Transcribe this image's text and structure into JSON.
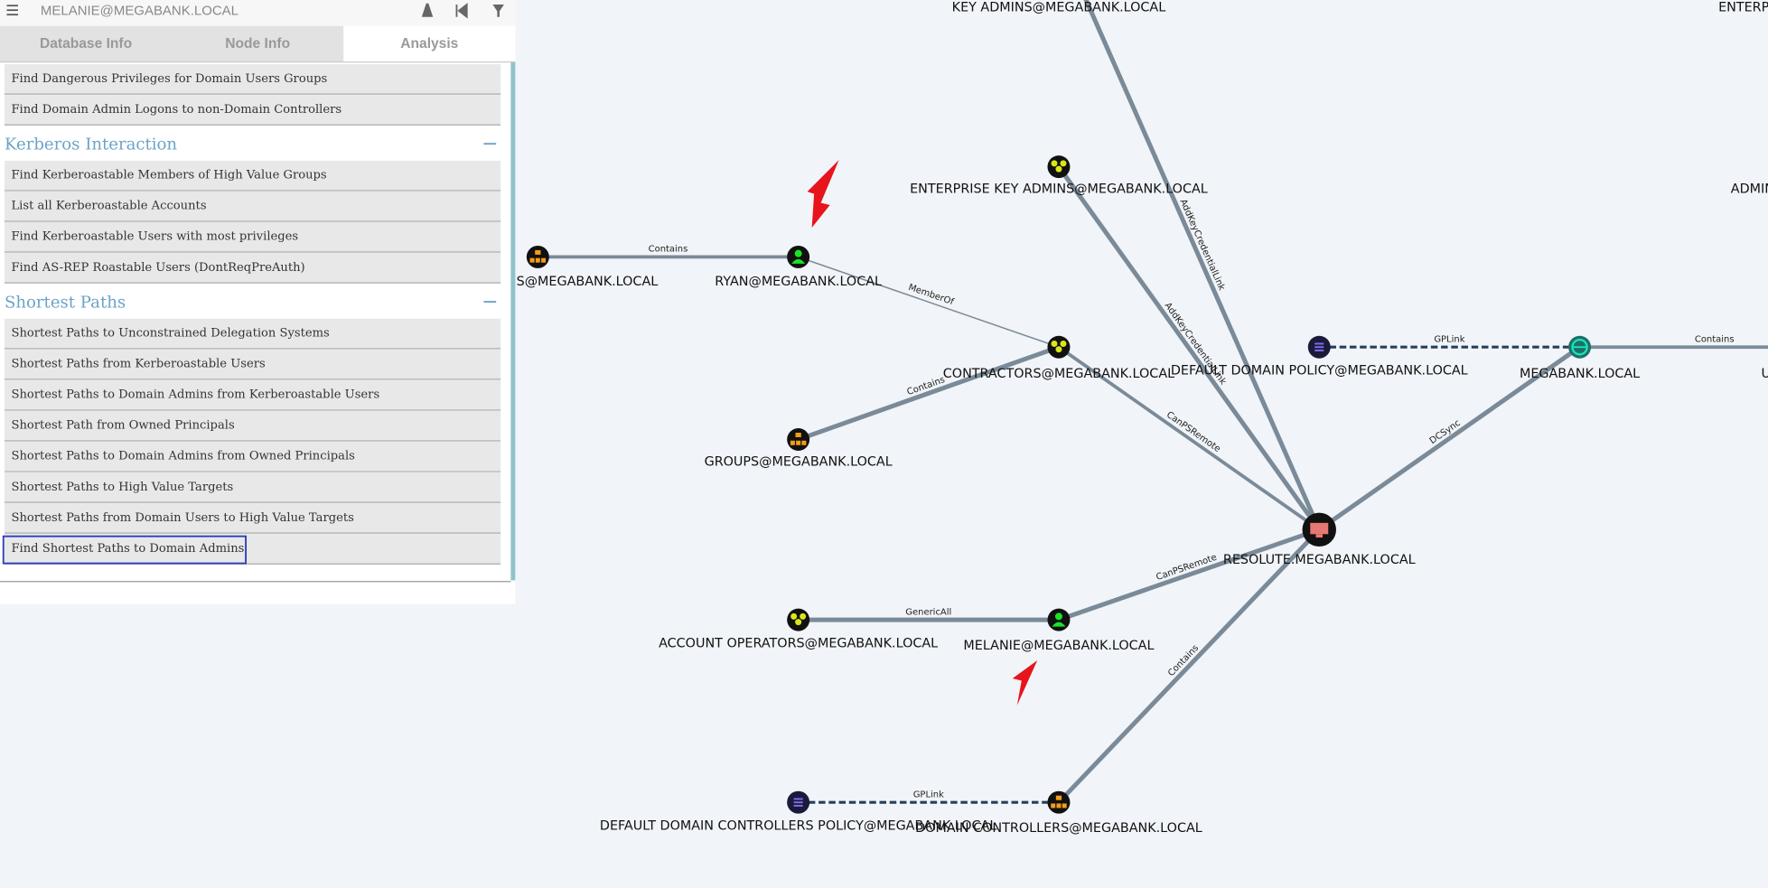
{
  "search": "MELANIE@MEGABANK.LOCAL",
  "tabs": [
    "Database Info",
    "Node Info",
    "Analysis"
  ],
  "active_tab": 2,
  "queries_top": [
    "Find Dangerous Privileges for Domain Users Groups",
    "Find Domain Admin Logons to non-Domain Controllers"
  ],
  "sections": [
    {
      "title": "Kerberos Interaction",
      "items": [
        "Find Kerberoastable Members of High Value Groups",
        "List all Kerberoastable Accounts",
        "Find Kerberoastable Users with most privileges",
        "Find AS-REP Roastable Users (DontReqPreAuth)"
      ]
    },
    {
      "title": "Shortest Paths",
      "items": [
        "Shortest Paths to Unconstrained Delegation Systems",
        "Shortest Paths from Kerberoastable Users",
        "Shortest Paths to Domain Admins from Kerberoastable Users",
        "Shortest Path from Owned Principals",
        "Shortest Paths to Domain Admins from Owned Principals",
        "Shortest Paths to High Value Targets",
        "Shortest Paths from Domain Users to High Value Targets",
        "Find Shortest Paths to Domain Admins"
      ]
    }
  ],
  "graph": {
    "nodes": [
      {
        "label": "KEY ADMINS@MEGABANK.LOCAL"
      },
      {
        "label": "ENTERP"
      },
      {
        "label": "ENTERPRISE KEY ADMINS@MEGABANK.LOCAL",
        "kind": "group"
      },
      {
        "label": "ADMIN"
      },
      {
        "label": "S@MEGABANK.LOCAL",
        "kind": "ou"
      },
      {
        "label": "RYAN@MEGABANK.LOCAL",
        "kind": "user"
      },
      {
        "label": "CONTRACTORS@MEGABANK.LOCAL",
        "kind": "group"
      },
      {
        "label": "GROUPS@MEGABANK.LOCAL",
        "kind": "ou"
      },
      {
        "label": "DEFAULT DOMAIN POLICY@MEGABANK.LOCAL",
        "kind": "gpo"
      },
      {
        "label": "MEGABANK.LOCAL",
        "kind": "domain"
      },
      {
        "label": "U"
      },
      {
        "label": "RESOLUTE.MEGABANK.LOCAL",
        "kind": "computer"
      },
      {
        "label": "ACCOUNT OPERATORS@MEGABANK.LOCAL",
        "kind": "group"
      },
      {
        "label": "MELANIE@MEGABANK.LOCAL",
        "kind": "user"
      },
      {
        "label": "DEFAULT DOMAIN CONTROLLERS POLICY@MEGABANK.LOCAL",
        "kind": "gpo"
      },
      {
        "label": "DOMAIN CONTROLLERS@MEGABANK.LOCAL",
        "kind": "ou"
      }
    ],
    "edges": [
      {
        "from": 4,
        "to": 5,
        "label": "Contains"
      },
      {
        "from": 5,
        "to": 6,
        "label": "MemberOf"
      },
      {
        "from": 7,
        "to": 6,
        "label": "Contains"
      },
      {
        "from": 0,
        "to": 11,
        "label": "AddKeyCredentialLink"
      },
      {
        "from": 2,
        "to": 11,
        "label": "AddKeyCredentialLink"
      },
      {
        "from": 6,
        "to": 11,
        "label": "CanPSRemote"
      },
      {
        "from": 8,
        "to": 9,
        "label": "GPLink",
        "dashed": true
      },
      {
        "from": 9,
        "to": 10,
        "label": "Contains"
      },
      {
        "from": 11,
        "to": 9,
        "label": "DCSync"
      },
      {
        "from": 13,
        "to": 11,
        "label": "CanPSRemote"
      },
      {
        "from": 12,
        "to": 13,
        "label": "GenericAll"
      },
      {
        "from": 15,
        "to": 11,
        "label": "Contains"
      },
      {
        "from": 14,
        "to": 15,
        "label": "GPLink",
        "dashed": true
      }
    ]
  }
}
